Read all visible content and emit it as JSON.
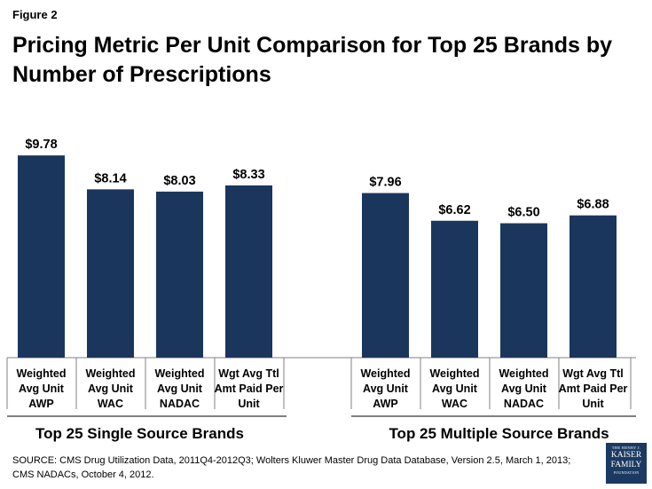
{
  "figure_label": "Figure 2",
  "title": "Pricing Metric Per Unit Comparison for Top 25 Brands by Number of Prescriptions",
  "source": "SOURCE: CMS Drug Utilization Data, 2011Q4-2012Q3; Wolters Kluwer Master Drug Data Database, Version 2.5, March 1, 2013; CMS NADACs, October 4, 2012.",
  "logo": {
    "line1": "THE HENRY J.",
    "line2": "KAISER",
    "line3": "FAMILY",
    "line4": "FOUNDATION"
  },
  "colors": {
    "bar": "#1b365d",
    "axis": "#808080"
  },
  "chart_data": {
    "type": "bar",
    "title": "Pricing Metric Per Unit Comparison for Top 25 Brands by Number of Prescriptions",
    "ylim": [
      0,
      10.5
    ],
    "groups": [
      {
        "name": "Top 25 Single Source Brands",
        "categories": [
          [
            "Weighted",
            "Avg Unit",
            "AWP"
          ],
          [
            "Weighted",
            "Avg Unit",
            "WAC"
          ],
          [
            "Weighted",
            "Avg Unit",
            "NADAC"
          ],
          [
            "Wgt Avg Ttl",
            "Amt Paid Per",
            "Unit"
          ]
        ],
        "values": [
          9.78,
          8.14,
          8.03,
          8.33
        ],
        "labels": [
          "$9.78",
          "$8.14",
          "$8.03",
          "$8.33"
        ]
      },
      {
        "name": "Top 25 Multiple Source Brands",
        "categories": [
          [
            "Weighted",
            "Avg Unit",
            "AWP"
          ],
          [
            "Weighted",
            "Avg Unit",
            "WAC"
          ],
          [
            "Weighted",
            "Avg Unit",
            "NADAC"
          ],
          [
            "Wgt Avg Ttl",
            "Amt Paid Per",
            "Unit"
          ]
        ],
        "values": [
          7.96,
          6.62,
          6.5,
          6.88
        ],
        "labels": [
          "$7.96",
          "$6.62",
          "$6.50",
          "$6.88"
        ]
      }
    ]
  }
}
